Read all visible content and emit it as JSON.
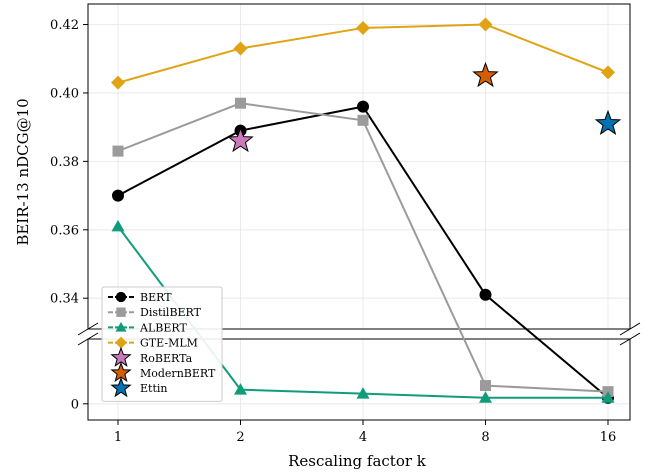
{
  "chart_data": {
    "type": "line",
    "xlabel": "Rescaling factor k",
    "ylabel": "BEIR-13 nDCG@10",
    "x": [
      1,
      2,
      4,
      8,
      16
    ],
    "x_scale": "log2",
    "broken_y_axis": true,
    "ylim_upper": [
      0.331,
      0.426
    ],
    "yticks_upper": [
      0.34,
      0.36,
      0.38,
      0.4,
      0.42
    ],
    "yticks_lower": [
      0
    ],
    "grid": true,
    "legend_position": "lower-left",
    "series": [
      {
        "name": "BERT",
        "marker": "circle",
        "style": "solid",
        "color": "#000000",
        "values": [
          0.37,
          0.389,
          0.396,
          0.341,
          0.003
        ]
      },
      {
        "name": "DistilBERT",
        "marker": "square",
        "style": "solid",
        "color": "#9b9b9b",
        "values": [
          0.383,
          0.397,
          0.392,
          0.009,
          0.006
        ]
      },
      {
        "name": "ALBERT",
        "marker": "triangle",
        "style": "solid",
        "color": "#109c7a",
        "values": [
          0.361,
          0.007,
          0.005,
          0.003,
          0.003
        ]
      },
      {
        "name": "GTE-MLM",
        "marker": "diamond",
        "style": "solid",
        "color": "#e0a314",
        "values": [
          0.403,
          0.413,
          0.419,
          0.42,
          0.406
        ]
      }
    ],
    "points": [
      {
        "name": "RoBERTa",
        "marker": "star",
        "color": "#cc78bc",
        "x": 2,
        "y": 0.386
      },
      {
        "name": "ModernBERT",
        "marker": "star",
        "color": "#d55e00",
        "x": 8,
        "y": 0.405
      },
      {
        "name": "Ettin",
        "marker": "star",
        "color": "#0072b2",
        "x": 16,
        "y": 0.391
      }
    ]
  }
}
